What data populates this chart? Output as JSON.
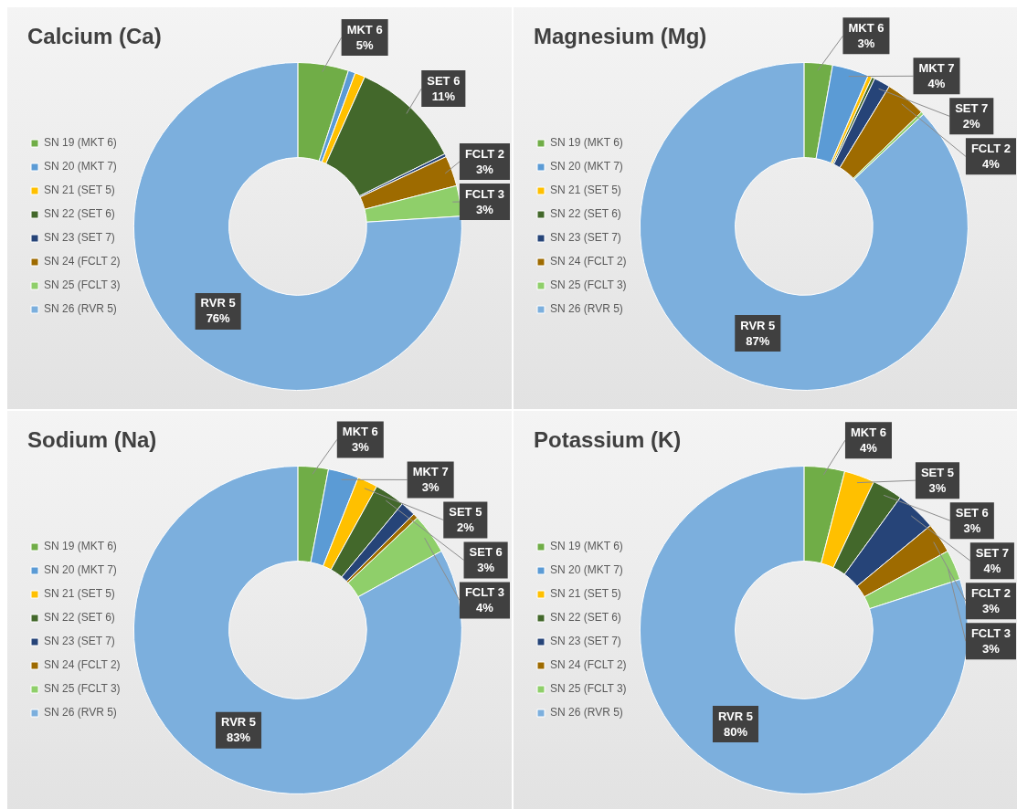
{
  "chart_data": [
    {
      "type": "donut",
      "title": "Calcium (Ca)",
      "legend": "left",
      "categories": [
        "SN 19 (MKT 6)",
        "SN 20 (MKT 7)",
        "SN 21 (SET 5)",
        "SN 22 (SET 6)",
        "SN 23 (SET 7)",
        "SN 24 (FCLT 2)",
        "SN 25 (FCLT 3)",
        "SN 26 (RVR 5)"
      ],
      "values": [
        5,
        0.7,
        1,
        11,
        0.3,
        3,
        3,
        76
      ],
      "colors": [
        "#70ad47",
        "#5b9bd5",
        "#ffc000",
        "#43682b",
        "#264478",
        "#9e6b00",
        "#8fcf6a",
        "#7cafdd"
      ],
      "value_labels": [
        "MKT 6\n5%",
        null,
        null,
        "SET 6\n11%",
        null,
        "FCLT 2\n3%",
        "FCLT 3\n3%",
        "RVR 5\n76%"
      ]
    },
    {
      "type": "donut",
      "title": "Magnesium (Mg)",
      "legend": "left",
      "categories": [
        "SN 19 (MKT 6)",
        "SN 20 (MKT 7)",
        "SN 21 (SET 5)",
        "SN 22 (SET 6)",
        "SN 23 (SET 7)",
        "SN 24 (FCLT 2)",
        "SN 25 (FCLT 3)",
        "SN 26 (RVR 5)"
      ],
      "values": [
        2.8,
        3.6,
        0.4,
        0.3,
        1.6,
        4,
        0.3,
        87
      ],
      "colors": [
        "#70ad47",
        "#5b9bd5",
        "#ffc000",
        "#43682b",
        "#264478",
        "#9e6b00",
        "#8fcf6a",
        "#7cafdd"
      ],
      "value_labels": [
        "MKT 6\n3%",
        "MKT 7\n4%",
        null,
        null,
        "SET 7\n2%",
        "FCLT 2\n4%",
        null,
        "RVR 5\n87%"
      ]
    },
    {
      "type": "donut",
      "title": "Sodium (Na)",
      "legend": "left",
      "categories": [
        "SN 19 (MKT 6)",
        "SN 20 (MKT 7)",
        "SN 21 (SET 5)",
        "SN 22 (SET 6)",
        "SN 23 (SET 7)",
        "SN 24 (FCLT 2)",
        "SN 25 (FCLT 3)",
        "SN 26 (RVR 5)"
      ],
      "values": [
        3,
        3,
        2,
        3,
        1.5,
        0.5,
        4,
        83
      ],
      "colors": [
        "#70ad47",
        "#5b9bd5",
        "#ffc000",
        "#43682b",
        "#264478",
        "#9e6b00",
        "#8fcf6a",
        "#7cafdd"
      ],
      "value_labels": [
        "MKT 6\n3%",
        "MKT 7\n3%",
        "SET 5\n2%",
        "SET 6\n3%",
        null,
        null,
        "FCLT 3\n4%",
        "RVR 5\n83%"
      ]
    },
    {
      "type": "donut",
      "title": "Potassium (K)",
      "legend": "left",
      "categories": [
        "SN 19 (MKT 6)",
        "SN 20 (MKT 7)",
        "SN 21 (SET 5)",
        "SN 22 (SET 6)",
        "SN 23 (SET 7)",
        "SN 24 (FCLT 2)",
        "SN 25 (FCLT 3)",
        "SN 26 (RVR 5)"
      ],
      "values": [
        4,
        0,
        3,
        3,
        4,
        3,
        3,
        80
      ],
      "colors": [
        "#70ad47",
        "#5b9bd5",
        "#ffc000",
        "#43682b",
        "#264478",
        "#9e6b00",
        "#8fcf6a",
        "#7cafdd"
      ],
      "value_labels": [
        "MKT 6\n4%",
        null,
        "SET 5\n3%",
        "SET 6\n3%",
        "SET 7\n4%",
        "FCLT 2\n3%",
        "FCLT 3\n3%",
        "RVR 5\n80%"
      ]
    }
  ]
}
